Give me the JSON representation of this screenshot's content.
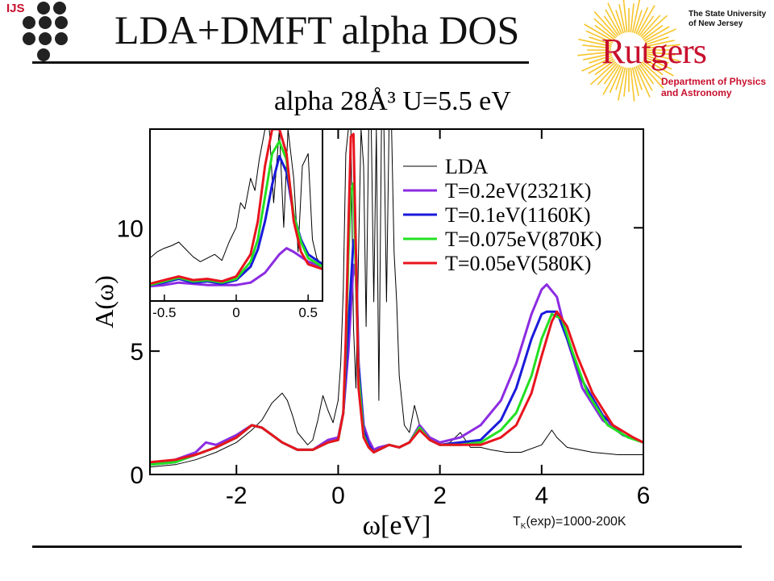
{
  "header": {
    "logo_text": "IJS",
    "title": "LDA+DMFT alpha DOS"
  },
  "rutgers_logo": {
    "university": "The State University of New Jersey",
    "name": "Rutgers",
    "department": "Department of Physics and Astronomy",
    "color": "#c8102e"
  },
  "footnote": {
    "prefix": "T",
    "subscript": "K",
    "suffix": "(exp)=1000-200K"
  },
  "chart_data": [
    {
      "type": "line",
      "title": "alpha  28Å³  U=5.5 eV",
      "xlabel": "ω[eV]",
      "ylabel": "A(ω)",
      "xlim": [
        -3.7,
        6.0
      ],
      "ylim": [
        0,
        14.0
      ],
      "xticks": [
        -2,
        0,
        2,
        4,
        6
      ],
      "yticks": [
        0,
        5,
        10
      ],
      "grid": false,
      "legend_position": "top-right",
      "series": [
        {
          "name": "LDA",
          "color": "#000000",
          "x": [
            -3.7,
            -3.2,
            -2.8,
            -2.4,
            -2.0,
            -1.7,
            -1.5,
            -1.3,
            -1.1,
            -1.0,
            -0.9,
            -0.8,
            -0.6,
            -0.5,
            -0.4,
            -0.3,
            -0.2,
            -0.1,
            0.0,
            0.05,
            0.1,
            0.15,
            0.2,
            0.25,
            0.3,
            0.35,
            0.4,
            0.45,
            0.5,
            0.55,
            0.6,
            0.65,
            0.7,
            0.75,
            0.8,
            0.85,
            0.9,
            0.95,
            1.0,
            1.05,
            1.1,
            1.15,
            1.2,
            1.3,
            1.4,
            1.5,
            1.6,
            1.8,
            2.0,
            2.2,
            2.4,
            2.6,
            2.8,
            3.0,
            3.3,
            3.6,
            4.0,
            4.2,
            4.3,
            4.5,
            5.0,
            5.5,
            6.0
          ],
          "y": [
            0.3,
            0.4,
            0.6,
            0.9,
            1.3,
            1.8,
            2.2,
            2.9,
            3.3,
            3.0,
            2.4,
            1.7,
            1.2,
            1.4,
            2.2,
            3.2,
            2.6,
            2.1,
            3.0,
            4.5,
            7.5,
            13.0,
            14.0,
            14.0,
            6.0,
            3.5,
            9.0,
            14.0,
            12.5,
            6.0,
            14.0,
            14.0,
            7.0,
            14.0,
            3.0,
            14.0,
            14.0,
            7.0,
            14.0,
            14.0,
            9.0,
            7.0,
            4.0,
            2.0,
            1.7,
            2.8,
            2.0,
            1.4,
            1.2,
            1.3,
            1.7,
            1.1,
            1.1,
            1.0,
            0.9,
            0.9,
            1.2,
            1.8,
            1.5,
            1.1,
            0.9,
            0.8,
            0.8
          ]
        },
        {
          "name": "T=0.2eV(2321K)",
          "color": "#8b2be2",
          "x": [
            -3.7,
            -3.2,
            -2.8,
            -2.6,
            -2.4,
            -2.0,
            -1.7,
            -1.5,
            -1.3,
            -1.1,
            -0.8,
            -0.5,
            -0.2,
            0.0,
            0.1,
            0.2,
            0.3,
            0.35,
            0.4,
            0.5,
            0.6,
            0.7,
            0.8,
            1.0,
            1.2,
            1.4,
            1.6,
            1.8,
            2.0,
            2.4,
            2.8,
            3.2,
            3.5,
            3.8,
            4.0,
            4.1,
            4.3,
            4.5,
            4.8,
            5.2,
            5.6,
            6.0
          ],
          "y": [
            0.4,
            0.6,
            0.9,
            1.3,
            1.2,
            1.6,
            2.0,
            1.9,
            1.6,
            1.3,
            1.0,
            1.0,
            1.4,
            1.5,
            2.5,
            5.0,
            8.5,
            8.0,
            4.5,
            2.0,
            1.4,
            1.0,
            1.1,
            1.2,
            1.1,
            1.3,
            2.0,
            1.5,
            1.3,
            1.5,
            2.0,
            3.0,
            4.5,
            6.5,
            7.5,
            7.7,
            7.2,
            5.5,
            3.5,
            2.2,
            1.6,
            1.3
          ]
        },
        {
          "name": "T=0.1eV(1160K)",
          "color": "#1a1adb",
          "x": [
            -3.7,
            -3.2,
            -2.8,
            -2.4,
            -2.0,
            -1.7,
            -1.5,
            -1.3,
            -1.1,
            -0.8,
            -0.5,
            -0.2,
            0.0,
            0.1,
            0.2,
            0.3,
            0.35,
            0.4,
            0.5,
            0.6,
            0.7,
            0.8,
            1.0,
            1.2,
            1.4,
            1.6,
            1.8,
            2.0,
            2.4,
            2.8,
            3.2,
            3.5,
            3.8,
            4.0,
            4.1,
            4.3,
            4.5,
            4.8,
            5.2,
            5.6,
            6.0
          ],
          "y": [
            0.4,
            0.5,
            0.8,
            1.1,
            1.5,
            2.0,
            1.9,
            1.6,
            1.3,
            1.0,
            1.0,
            1.3,
            1.4,
            2.5,
            6.0,
            9.5,
            9.0,
            4.5,
            1.8,
            1.2,
            0.9,
            1.0,
            1.2,
            1.1,
            1.3,
            1.9,
            1.4,
            1.2,
            1.3,
            1.4,
            2.2,
            3.5,
            5.5,
            6.5,
            6.6,
            6.6,
            5.5,
            3.8,
            2.4,
            1.6,
            1.3
          ]
        },
        {
          "name": "T=0.075eV(870K)",
          "color": "#22e022",
          "x": [
            -3.7,
            -3.2,
            -2.8,
            -2.4,
            -2.0,
            -1.7,
            -1.5,
            -1.3,
            -1.1,
            -0.8,
            -0.5,
            -0.2,
            0.0,
            0.1,
            0.15,
            0.2,
            0.25,
            0.3,
            0.35,
            0.4,
            0.5,
            0.6,
            0.7,
            0.8,
            1.0,
            1.2,
            1.4,
            1.6,
            1.8,
            2.0,
            2.4,
            2.8,
            3.2,
            3.5,
            3.8,
            4.0,
            4.2,
            4.4,
            4.6,
            4.9,
            5.3,
            5.7,
            6.0
          ],
          "y": [
            0.4,
            0.5,
            0.8,
            1.1,
            1.5,
            2.0,
            1.9,
            1.6,
            1.3,
            1.0,
            1.0,
            1.3,
            1.4,
            2.5,
            5.0,
            9.0,
            11.5,
            11.8,
            8.0,
            4.0,
            1.6,
            1.1,
            0.9,
            1.0,
            1.2,
            1.1,
            1.3,
            1.9,
            1.4,
            1.2,
            1.2,
            1.3,
            1.8,
            2.5,
            4.0,
            5.5,
            6.5,
            6.3,
            5.0,
            3.3,
            2.0,
            1.5,
            1.3
          ]
        },
        {
          "name": "T=0.05eV(580K)",
          "color": "#e8141e",
          "x": [
            -3.7,
            -3.2,
            -2.8,
            -2.4,
            -2.0,
            -1.7,
            -1.5,
            -1.3,
            -1.1,
            -0.8,
            -0.5,
            -0.2,
            0.0,
            0.1,
            0.15,
            0.2,
            0.25,
            0.3,
            0.35,
            0.4,
            0.5,
            0.6,
            0.7,
            0.8,
            1.0,
            1.2,
            1.4,
            1.6,
            1.8,
            2.0,
            2.4,
            2.8,
            3.2,
            3.5,
            3.8,
            4.0,
            4.2,
            4.3,
            4.5,
            4.7,
            5.0,
            5.4,
            5.8,
            6.0
          ],
          "y": [
            0.5,
            0.6,
            0.8,
            1.1,
            1.5,
            2.0,
            1.9,
            1.6,
            1.3,
            1.0,
            1.0,
            1.3,
            1.4,
            2.5,
            5.5,
            10.0,
            13.7,
            13.8,
            9.0,
            3.5,
            1.5,
            1.1,
            0.9,
            1.0,
            1.2,
            1.1,
            1.3,
            1.8,
            1.4,
            1.2,
            1.2,
            1.2,
            1.5,
            2.0,
            3.3,
            4.8,
            6.2,
            6.6,
            6.0,
            4.8,
            3.3,
            2.0,
            1.5,
            1.3
          ]
        }
      ]
    },
    {
      "type": "line",
      "title": "",
      "xlabel": "",
      "ylabel": "",
      "xlim": [
        -0.6,
        0.6
      ],
      "ylim": [
        0,
        14.0
      ],
      "xticks": [
        -0.5,
        0,
        0.5
      ],
      "yticks": [],
      "grid": false,
      "series": [
        {
          "name": "LDA",
          "color": "#000000",
          "x": [
            -0.6,
            -0.55,
            -0.5,
            -0.45,
            -0.4,
            -0.35,
            -0.3,
            -0.25,
            -0.2,
            -0.15,
            -0.1,
            -0.05,
            0.0,
            0.03,
            0.06,
            0.1,
            0.13,
            0.16,
            0.2,
            0.23,
            0.26,
            0.3,
            0.33,
            0.36,
            0.4,
            0.43,
            0.46,
            0.5,
            0.53,
            0.56,
            0.6
          ],
          "y": [
            3.5,
            4.0,
            4.3,
            4.5,
            4.8,
            4.2,
            3.6,
            3.2,
            3.5,
            3.8,
            3.3,
            4.8,
            6.0,
            8.0,
            7.5,
            10.0,
            9.0,
            11.5,
            14.0,
            14.0,
            8.0,
            14.0,
            6.0,
            14.0,
            10.0,
            4.0,
            11.0,
            12.0,
            5.0,
            3.5,
            2.8
          ]
        },
        {
          "name": "T=0.2eV(2321K)",
          "color": "#8b2be2",
          "x": [
            -0.6,
            -0.5,
            -0.4,
            -0.3,
            -0.2,
            -0.1,
            0.0,
            0.1,
            0.2,
            0.3,
            0.35,
            0.4,
            0.5,
            0.6
          ],
          "y": [
            1.2,
            1.3,
            1.5,
            1.4,
            1.3,
            1.3,
            1.3,
            1.5,
            2.3,
            3.8,
            4.3,
            4.0,
            3.2,
            2.8
          ]
        },
        {
          "name": "T=0.1eV(1160K)",
          "color": "#1a1adb",
          "x": [
            -0.6,
            -0.5,
            -0.4,
            -0.3,
            -0.2,
            -0.1,
            0.0,
            0.1,
            0.15,
            0.2,
            0.25,
            0.3,
            0.35,
            0.4,
            0.45,
            0.5,
            0.6
          ],
          "y": [
            1.3,
            1.5,
            1.8,
            1.5,
            1.6,
            1.4,
            1.7,
            2.8,
            4.2,
            6.5,
            9.5,
            11.8,
            10.5,
            7.0,
            5.0,
            3.8,
            3.0
          ]
        },
        {
          "name": "T=0.075eV(870K)",
          "color": "#22e022",
          "x": [
            -0.6,
            -0.5,
            -0.4,
            -0.3,
            -0.2,
            -0.1,
            0.0,
            0.1,
            0.15,
            0.2,
            0.25,
            0.3,
            0.35,
            0.4,
            0.45,
            0.5,
            0.6
          ],
          "y": [
            1.3,
            1.6,
            1.9,
            1.6,
            1.7,
            1.5,
            1.8,
            3.2,
            5.0,
            8.5,
            12.0,
            13.0,
            11.5,
            7.0,
            4.8,
            3.5,
            2.8
          ]
        },
        {
          "name": "T=0.05eV(580K)",
          "color": "#e8141e",
          "x": [
            -0.6,
            -0.5,
            -0.4,
            -0.3,
            -0.2,
            -0.1,
            0.0,
            0.1,
            0.15,
            0.2,
            0.25,
            0.3,
            0.35,
            0.4,
            0.45,
            0.5,
            0.6
          ],
          "y": [
            1.4,
            1.7,
            2.0,
            1.7,
            1.8,
            1.6,
            2.0,
            3.8,
            6.5,
            11.0,
            14.0,
            14.0,
            12.0,
            6.5,
            4.0,
            3.0,
            2.6
          ]
        }
      ]
    }
  ]
}
